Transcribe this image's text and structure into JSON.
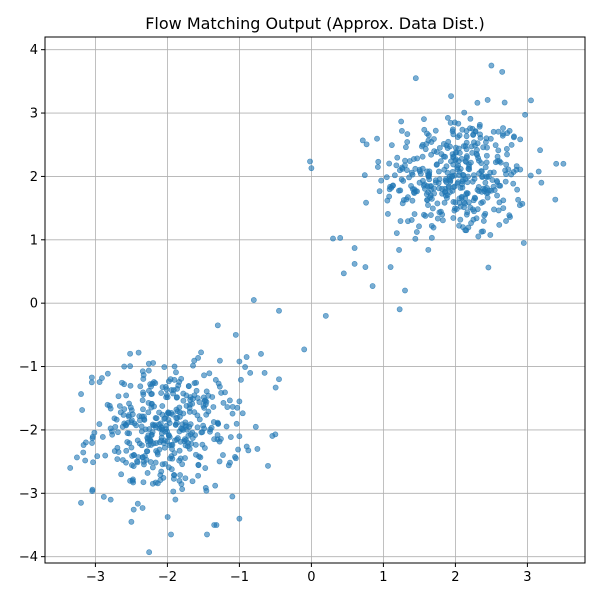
{
  "chart_data": {
    "type": "scatter",
    "title": "Flow Matching Output (Approx. Data Dist.)",
    "xlabel": "",
    "ylabel": "",
    "xlim": [
      -3.7,
      3.8
    ],
    "ylim": [
      -4.1,
      4.2
    ],
    "xticks": [
      -3,
      -2,
      -1,
      0,
      1,
      2,
      3
    ],
    "yticks": [
      -4,
      -3,
      -2,
      -1,
      0,
      1,
      2,
      3,
      4
    ],
    "xtick_labels": [
      "−3",
      "−2",
      "−1",
      "0",
      "1",
      "2",
      "3"
    ],
    "ytick_labels": [
      "−4",
      "−3",
      "−2",
      "−1",
      "0",
      "1",
      "2",
      "3",
      "4"
    ],
    "grid": true,
    "legend": "none",
    "colors": {
      "points": "#1f77b4",
      "grid": "#b0b0b0"
    },
    "clusters": [
      {
        "center": [
          2.0,
          2.0
        ],
        "spread": 0.5,
        "count": 400
      },
      {
        "center": [
          -2.0,
          -2.0
        ],
        "spread": 0.5,
        "count": 400
      }
    ],
    "outliers": [
      [
        0.0,
        2.13
      ],
      [
        0.3,
        1.02
      ],
      [
        0.4,
        1.03
      ],
      [
        0.6,
        0.87
      ],
      [
        0.45,
        0.47
      ],
      [
        0.6,
        0.62
      ],
      [
        0.75,
        0.57
      ],
      [
        0.85,
        0.27
      ],
      [
        1.1,
        0.57
      ],
      [
        1.3,
        0.2
      ],
      [
        0.2,
        -0.2
      ],
      [
        -0.45,
        -0.12
      ],
      [
        -0.8,
        0.05
      ],
      [
        -0.1,
        -0.73
      ],
      [
        -0.9,
        -0.85
      ],
      [
        -1.0,
        -0.92
      ],
      [
        -1.05,
        -0.5
      ],
      [
        -0.7,
        -0.8
      ],
      [
        -0.45,
        -1.2
      ],
      [
        -0.65,
        -1.1
      ],
      [
        -0.85,
        -1.1
      ],
      [
        -0.75,
        -2.3
      ],
      [
        -1.3,
        -0.35
      ],
      [
        -1.0,
        -1.55
      ],
      [
        -1.0,
        -2.1
      ],
      [
        -1.0,
        -3.4
      ],
      [
        2.5,
        3.75
      ],
      [
        2.65,
        3.65
      ],
      [
        3.05,
        3.2
      ],
      [
        3.4,
        2.2
      ],
      [
        3.5,
        2.2
      ],
      [
        2.95,
        0.95
      ],
      [
        1.45,
        3.55
      ],
      [
        -3.35,
        -2.6
      ],
      [
        -3.2,
        -3.15
      ],
      [
        -2.5,
        -3.45
      ],
      [
        -1.95,
        -3.65
      ],
      [
        -1.45,
        -3.65
      ],
      [
        -1.35,
        -3.5
      ],
      [
        -2.6,
        -1.0
      ],
      [
        -2.4,
        -0.78
      ],
      [
        -3.05,
        -1.25
      ]
    ]
  }
}
